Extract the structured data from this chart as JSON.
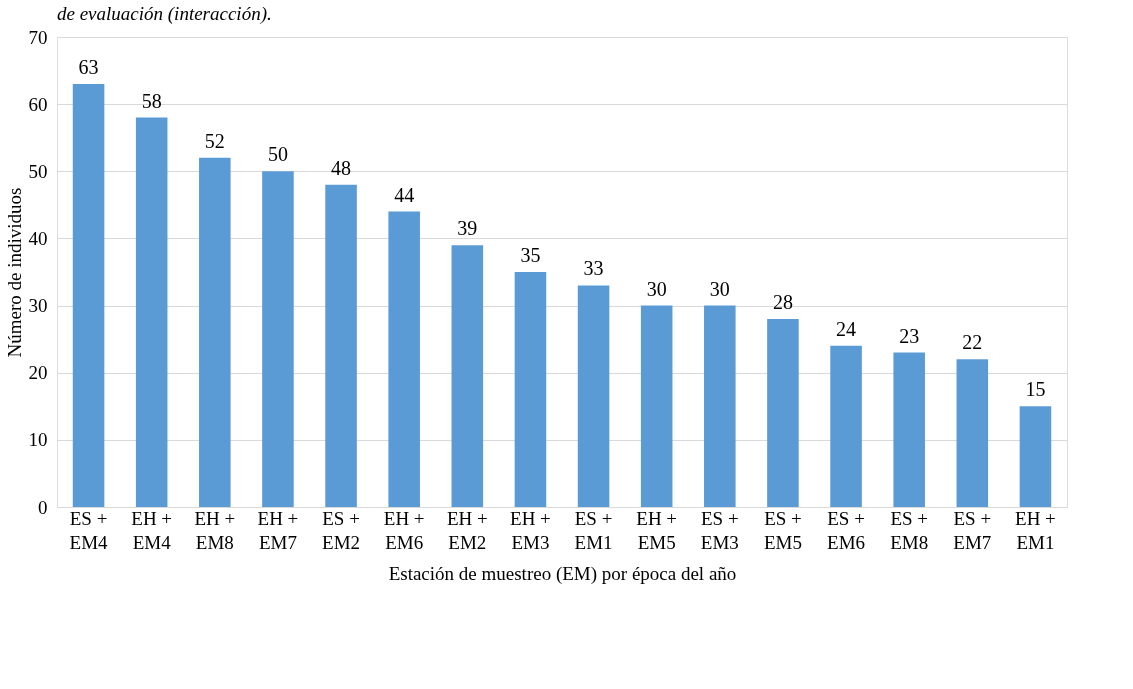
{
  "chart_data": {
    "type": "bar",
    "annotations": [
      "de evaluación (interacción)."
    ],
    "xlabel": "Estación de muestreo (EM) por época del año",
    "ylabel": "Número de individuos",
    "categories": [
      "ES + EM4",
      "EH + EM4",
      "EH + EM8",
      "EH + EM7",
      "ES + EM2",
      "EH + EM6",
      "EH + EM2",
      "EH + EM3",
      "ES + EM1",
      "EH + EM5",
      "ES + EM3",
      "ES + EM5",
      "ES + EM6",
      "ES + EM8",
      "ES + EM7",
      "EH + EM1"
    ],
    "values": [
      63,
      58,
      52,
      50,
      48,
      44,
      39,
      35,
      33,
      30,
      30,
      28,
      24,
      23,
      22,
      15
    ],
    "color": "#5b9bd5",
    "ylim": [
      0,
      70
    ],
    "yticks": [
      0,
      10,
      20,
      30,
      40,
      50,
      60,
      70
    ],
    "grid": "y",
    "data_labels": true
  }
}
